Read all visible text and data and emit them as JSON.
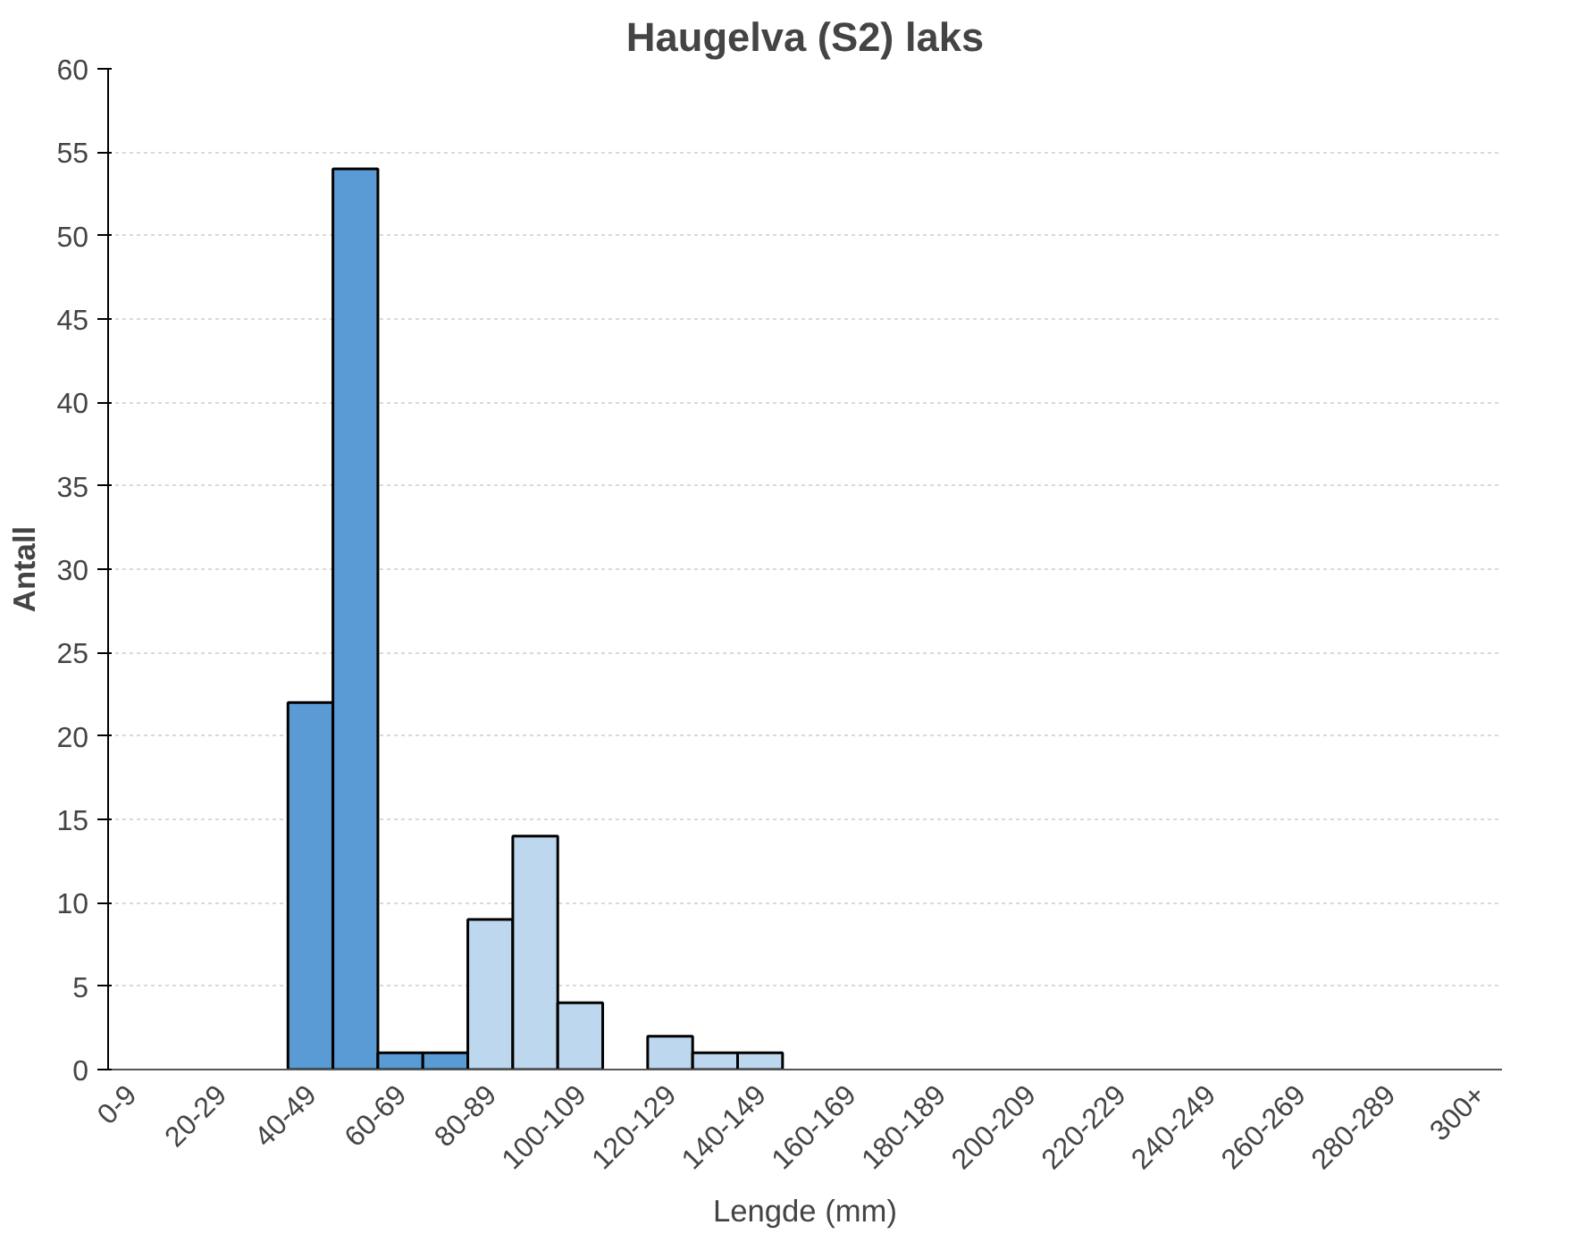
{
  "chart_data": {
    "type": "bar",
    "title": "Haugelva (S2) laks",
    "xlabel": "Lengde (mm)",
    "ylabel": "Antall",
    "categories": [
      "0-9",
      null,
      "20-29",
      null,
      "40-49",
      null,
      "60-69",
      null,
      "80-89",
      null,
      "100-109",
      null,
      "120-129",
      null,
      "140-149",
      null,
      "160-169",
      null,
      "180-189",
      null,
      "200-209",
      null,
      "220-229",
      null,
      "240-249",
      null,
      "260-269",
      null,
      "280-289",
      null,
      "300+"
    ],
    "values": [
      0,
      0,
      0,
      0,
      22,
      54,
      1,
      1,
      9,
      14,
      4,
      0,
      2,
      1,
      1,
      0,
      0,
      0,
      0,
      0,
      0,
      0,
      0,
      0,
      0,
      0,
      0,
      0,
      0,
      0,
      0
    ],
    "colors": [
      "#5b9bd5",
      "#5b9bd5",
      "#5b9bd5",
      "#5b9bd5",
      "#5b9bd5",
      "#5b9bd5",
      "#5b9bd5",
      "#5b9bd5",
      "#bdd7ee",
      "#bdd7ee",
      "#bdd7ee",
      "#bdd7ee",
      "#bdd7ee",
      "#bdd7ee",
      "#bdd7ee",
      "#bdd7ee",
      "#bdd7ee",
      "#bdd7ee",
      "#bdd7ee",
      "#bdd7ee",
      "#bdd7ee",
      "#bdd7ee",
      "#bdd7ee",
      "#bdd7ee",
      "#bdd7ee",
      "#bdd7ee",
      "#bdd7ee",
      "#bdd7ee",
      "#bdd7ee",
      "#bdd7ee",
      "#bdd7ee"
    ],
    "ylim": [
      0,
      60
    ],
    "yticks": [
      0,
      5,
      10,
      15,
      20,
      25,
      30,
      35,
      40,
      45,
      50,
      55,
      60
    ],
    "grid": "y"
  }
}
